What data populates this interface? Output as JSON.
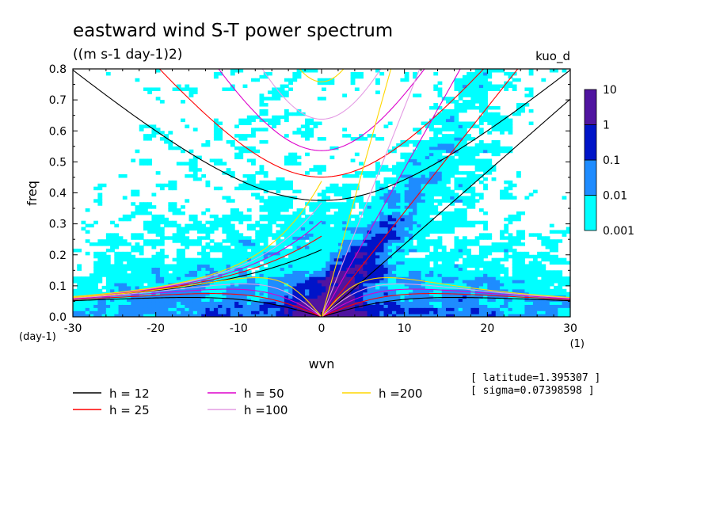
{
  "chart_data": {
    "type": "heatmap",
    "title": "eastward wind S-T power spectrum",
    "subtitle": "((m s-1 day-1)2)",
    "run_label": "kuo_d",
    "xlabel": "wvn",
    "ylabel": "freq",
    "x_unit": "(1)",
    "y_unit": "(day-1)",
    "xlim": [
      -30,
      30
    ],
    "ylim": [
      0,
      0.8
    ],
    "x_ticks": [
      -30,
      -20,
      -10,
      0,
      10,
      20,
      30
    ],
    "x_tick_labels": [
      "-30",
      "-20",
      "-10",
      "0",
      "10",
      "20",
      "30"
    ],
    "y_ticks": [
      0,
      0.1,
      0.2,
      0.3,
      0.4,
      0.5,
      0.6,
      0.7,
      0.8
    ],
    "y_tick_labels": [
      "0.0",
      "0.1",
      "0.2",
      "0.3",
      "0.4",
      "0.5",
      "0.6",
      "0.7",
      "0.8"
    ],
    "colorbar": {
      "levels": [
        "0.001",
        "0.01",
        "0.1",
        "1",
        "10"
      ],
      "colors": [
        "#00ffff",
        "#1e8cff",
        "#0014c8",
        "#0000a0"
      ],
      "top_color": "#5014a0",
      "scale": "log"
    },
    "series": [
      {
        "name": "h = 12",
        "color": "#000000",
        "h": 12
      },
      {
        "name": "h = 25",
        "color": "#ff0000",
        "h": 25
      },
      {
        "name": "h = 50",
        "color": "#dd00cc",
        "h": 50
      },
      {
        "name": "h =100",
        "color": "#e49be4",
        "h": 100
      },
      {
        "name": "h =200",
        "color": "#ffd700",
        "h": 200
      }
    ],
    "annotations": {
      "latitude": "[ latitude=1.395307 ]",
      "sigma": "[ sigma=0.07398598 ]"
    }
  }
}
